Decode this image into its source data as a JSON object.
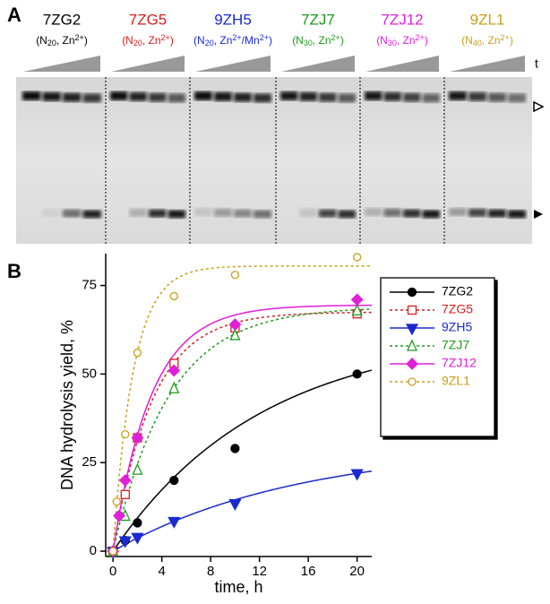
{
  "panel_a": {
    "label": "A",
    "time_label": "t",
    "lanes": [
      {
        "name": "7ZG2",
        "color": "#000000",
        "condition": [
          "(N",
          {
            "sub": "20"
          },
          ", Zn",
          {
            "sup": "2+"
          },
          ")"
        ]
      },
      {
        "name": "7ZG5",
        "color": "#d42020",
        "condition": [
          "(N",
          {
            "sub": "20"
          },
          ", Zn",
          {
            "sup": "2+"
          },
          ")"
        ]
      },
      {
        "name": "9ZH5",
        "color": "#1a2ad0",
        "condition": [
          "(N",
          {
            "sub": "20"
          },
          ", Zn",
          {
            "sup": "2+"
          },
          "/Mn",
          {
            "sup": "2+"
          },
          ")"
        ]
      },
      {
        "name": "7ZJ7",
        "color": "#1e9a1e",
        "condition": [
          "(N",
          {
            "sub": "30"
          },
          ", Zn",
          {
            "sup": "2+"
          },
          ")"
        ]
      },
      {
        "name": "7ZJ12",
        "color": "#e020d8",
        "condition": [
          "(N",
          {
            "sub": "30"
          },
          ", Zn",
          {
            "sup": "2+"
          },
          ")"
        ]
      },
      {
        "name": "9ZL1",
        "color": "#c8a018",
        "condition": [
          "(N",
          {
            "sub": "40"
          },
          ", Zn",
          {
            "sup": "2+"
          },
          ")"
        ]
      }
    ]
  },
  "chart_data": {
    "type": "scatter",
    "panel_label": "B",
    "x_label": "time, h",
    "y_label": "DNA hydrolysis yield, %",
    "xlim": [
      -0.6,
      21.2
    ],
    "xticks": [
      0,
      4,
      8,
      12,
      16,
      20
    ],
    "ylim": [
      -1.5,
      84
    ],
    "yticks": [
      0,
      25,
      50,
      75
    ],
    "legend": "upper right",
    "series": [
      {
        "name": "7ZG2",
        "color": "#000000",
        "marker": "circle",
        "filled": true,
        "dashed": false,
        "x": [
          0,
          1,
          2,
          5,
          10,
          20
        ],
        "values": [
          0,
          3,
          8,
          20,
          29,
          50
        ],
        "fit": {
          "plateau": 62,
          "rate": 0.082
        }
      },
      {
        "name": "7ZG5",
        "color": "#d42020",
        "marker": "square",
        "filled": false,
        "dashed": true,
        "x": [
          0,
          1,
          2,
          5,
          10,
          20
        ],
        "values": [
          0,
          16,
          32,
          53,
          63,
          67
        ],
        "fit": {
          "plateau": 67.5,
          "rate": 0.31
        }
      },
      {
        "name": "9ZH5",
        "color": "#1a2ad0",
        "marker": "triangle-down",
        "filled": true,
        "dashed": false,
        "x": [
          0,
          1,
          2,
          5,
          10,
          20
        ],
        "values": [
          0,
          3,
          4,
          8.5,
          13.5,
          22
        ],
        "fit": {
          "plateau": 30,
          "rate": 0.066
        }
      },
      {
        "name": "7ZJ7",
        "color": "#1e9a1e",
        "marker": "triangle",
        "filled": false,
        "dashed": true,
        "x": [
          0,
          1,
          2,
          5,
          10,
          20
        ],
        "values": [
          0,
          10,
          23,
          46,
          61,
          68
        ],
        "fit": {
          "plateau": 69,
          "rate": 0.22
        }
      },
      {
        "name": "7ZJ12",
        "color": "#e020d8",
        "marker": "diamond",
        "filled": true,
        "dashed": false,
        "x": [
          0,
          0.5,
          1,
          2,
          5,
          10,
          20
        ],
        "values": [
          0,
          10,
          20,
          32,
          51,
          64,
          71
        ],
        "fit": {
          "plateau": 69.5,
          "rate": 0.32
        }
      },
      {
        "name": "9ZL1",
        "color": "#c8a018",
        "marker": "circle",
        "filled": false,
        "dashed": true,
        "x": [
          0,
          0.3,
          1,
          2,
          5,
          10,
          20
        ],
        "values": [
          0,
          14,
          33,
          56,
          72,
          78,
          83
        ],
        "fit": {
          "plateau": 80.5,
          "rate": 0.6
        }
      }
    ]
  }
}
